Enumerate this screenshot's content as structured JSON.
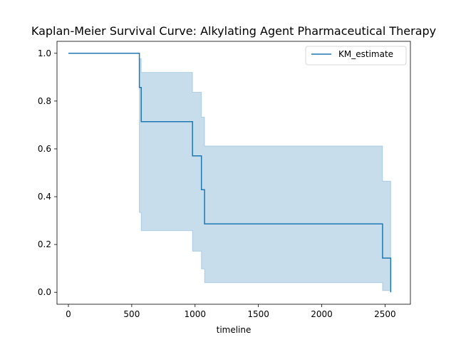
{
  "chart_data": {
    "type": "line",
    "title": "Kaplan-Meier Survival Curve: Alkylating Agent Pharmaceutical Therapy",
    "xlabel": "timeline",
    "ylabel": "",
    "xlim": [
      -90,
      2700
    ],
    "ylim": [
      -0.05,
      1.05
    ],
    "xticks": [
      0,
      500,
      1000,
      1500,
      2000,
      2500
    ],
    "yticks": [
      0.0,
      0.2,
      0.4,
      0.6,
      0.8,
      1.0
    ],
    "grid": false,
    "legend_position": "top-right",
    "series": [
      {
        "name": "KM_estimate",
        "color": "#1f77b4",
        "steps": [
          [
            0,
            1.0
          ],
          [
            560,
            0.857
          ],
          [
            575,
            0.714
          ],
          [
            980,
            0.571
          ],
          [
            1050,
            0.429
          ],
          [
            1075,
            0.286
          ],
          [
            2480,
            0.143
          ],
          [
            2545,
            0.0
          ]
        ],
        "ci": [
          {
            "x": 0,
            "lower": 1.0,
            "upper": 1.0
          },
          {
            "x": 560,
            "lower": 0.334,
            "upper": 0.978
          },
          {
            "x": 575,
            "lower": 0.258,
            "upper": 0.92
          },
          {
            "x": 980,
            "lower": 0.172,
            "upper": 0.837
          },
          {
            "x": 1050,
            "lower": 0.098,
            "upper": 0.733
          },
          {
            "x": 1075,
            "lower": 0.04,
            "upper": 0.612
          },
          {
            "x": 2480,
            "lower": 0.007,
            "upper": 0.465
          },
          {
            "x": 2545,
            "lower": 0.007,
            "upper": 0.465
          }
        ]
      }
    ]
  }
}
